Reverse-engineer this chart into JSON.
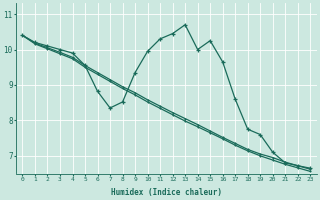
{
  "xlabel": "Humidex (Indice chaleur)",
  "background_color": "#cce8e0",
  "grid_color": "#ffffff",
  "line_color": "#1a6b5a",
  "xlim": [
    -0.5,
    23.5
  ],
  "ylim": [
    6.5,
    11.3
  ],
  "yticks": [
    7,
    8,
    9,
    10,
    11
  ],
  "xticks": [
    0,
    1,
    2,
    3,
    4,
    5,
    6,
    7,
    8,
    9,
    10,
    11,
    12,
    13,
    14,
    15,
    16,
    17,
    18,
    19,
    20,
    21,
    22,
    23
  ],
  "series_wavy": [
    10.4,
    10.2,
    10.1,
    10.0,
    9.9,
    9.55,
    8.82,
    8.35,
    8.52,
    9.35,
    9.95,
    10.3,
    10.45,
    10.7,
    10.0,
    10.25,
    9.65,
    8.6,
    7.75,
    7.6,
    7.1,
    6.8,
    6.72,
    6.65
  ],
  "series_line1": [
    10.4,
    10.18,
    10.05,
    9.92,
    9.78,
    9.55,
    9.35,
    9.15,
    8.95,
    8.78,
    8.58,
    8.4,
    8.22,
    8.05,
    7.88,
    7.7,
    7.52,
    7.35,
    7.18,
    7.05,
    6.95,
    6.82,
    6.72,
    6.62
  ],
  "series_line2": [
    10.4,
    10.16,
    10.02,
    9.88,
    9.74,
    9.5,
    9.3,
    9.1,
    8.9,
    8.72,
    8.52,
    8.34,
    8.16,
    7.98,
    7.82,
    7.65,
    7.48,
    7.3,
    7.14,
    7.0,
    6.88,
    6.76,
    6.66,
    6.56
  ]
}
